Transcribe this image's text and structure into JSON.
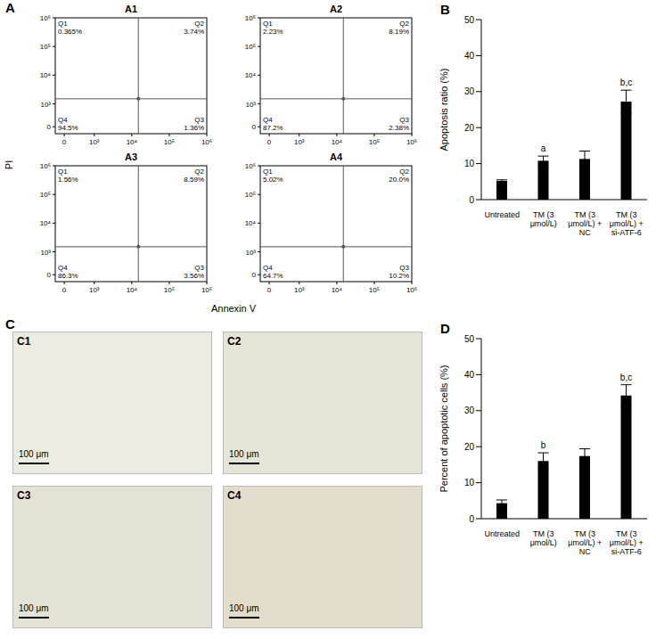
{
  "chart_data": [
    {
      "type": "scatter",
      "panel": "A",
      "x_label": "Annexin V",
      "y_label": "PI",
      "log": true,
      "xlim": [
        -300,
        1000000
      ],
      "ylim": [
        -300,
        1000000
      ],
      "xticks": [
        0,
        {
          "value": 1000,
          "label": "10³"
        },
        {
          "value": 10000,
          "label": "10⁴"
        },
        {
          "value": 100000,
          "label": "10⁵"
        },
        {
          "value": 1000000,
          "label": "10⁶"
        }
      ],
      "yticks": [
        0,
        {
          "value": 1000,
          "label": "10³"
        },
        {
          "value": 10000,
          "label": "10⁴"
        },
        {
          "value": 100000,
          "label": "10⁵"
        },
        {
          "value": 1000000,
          "label": "10⁶"
        }
      ],
      "gate": {
        "x": 15000,
        "y": 1500
      },
      "plots": [
        {
          "title": "A1",
          "quadrants": [
            "Q1",
            "Q2",
            "Q3",
            "Q4"
          ],
          "values": [
            0.365,
            3.74,
            1.36,
            94.5
          ],
          "value_labels": [
            "0.365%",
            "3.74%",
            "1.36%",
            "94.5%"
          ]
        },
        {
          "title": "A2",
          "quadrants": [
            "Q1",
            "Q2",
            "Q3",
            "Q4"
          ],
          "values": [
            2.23,
            8.19,
            2.38,
            87.2
          ],
          "value_labels": [
            "2.23%",
            "8.19%",
            "2.38%",
            "87.2%"
          ]
        },
        {
          "title": "A3",
          "quadrants": [
            "Q1",
            "Q2",
            "Q3",
            "Q4"
          ],
          "values": [
            1.56,
            8.59,
            3.56,
            86.3
          ],
          "value_labels": [
            "1.56%",
            "8.59%",
            "3.56%",
            "86.3%"
          ]
        },
        {
          "title": "A4",
          "quadrants": [
            "Q1",
            "Q2",
            "Q3",
            "Q4"
          ],
          "values": [
            5.02,
            20.0,
            10.2,
            64.7
          ],
          "value_labels": [
            "5.02%",
            "20.0%",
            "10.2%",
            "64.7%"
          ]
        }
      ]
    },
    {
      "type": "bar",
      "panel": "B",
      "y_label": "Apoptosis ratio (%)",
      "categories": [
        "Untreated",
        "TM (3 μmol/L)",
        "TM (3 μmol/L) + NC",
        "TM (3 μmol/L) + si-ATF-6"
      ],
      "values": [
        5.2,
        10.8,
        11.3,
        27.2
      ],
      "errors": [
        0.3,
        1.3,
        2.2,
        3.2
      ],
      "annotations": [
        null,
        "a",
        null,
        "b,c"
      ],
      "color": "#000000",
      "ylim": [
        0,
        50
      ],
      "yticks": [
        0,
        10,
        20,
        30,
        40,
        50
      ]
    },
    {
      "type": "bar",
      "panel": "D",
      "y_label": "Percent of apoptotic cells (%)",
      "categories": [
        "Untreated",
        "TM (3 μmol/L)",
        "TM (3 μmol/L) + NC",
        "TM (3 μmol/L) + si-ATF-6"
      ],
      "values": [
        4.3,
        16.0,
        17.4,
        34.2
      ],
      "errors": [
        0.9,
        2.3,
        2.0,
        3.0
      ],
      "annotations": [
        null,
        "b",
        null,
        "b,c"
      ],
      "color": "#000000",
      "ylim": [
        0,
        50
      ],
      "yticks": [
        0,
        10,
        20,
        30,
        40,
        50
      ]
    }
  ],
  "images": {
    "panel": "C",
    "items": [
      {
        "title": "C1",
        "scale_bar": "100 μm",
        "color": "#ebebdf"
      },
      {
        "title": "C2",
        "scale_bar": "100 μm",
        "color": "#e6e4d6"
      },
      {
        "title": "C3",
        "scale_bar": "100 μm",
        "color": "#e4e2d4"
      },
      {
        "title": "C4",
        "scale_bar": "100 μm",
        "color": "#e2dccb"
      }
    ]
  }
}
